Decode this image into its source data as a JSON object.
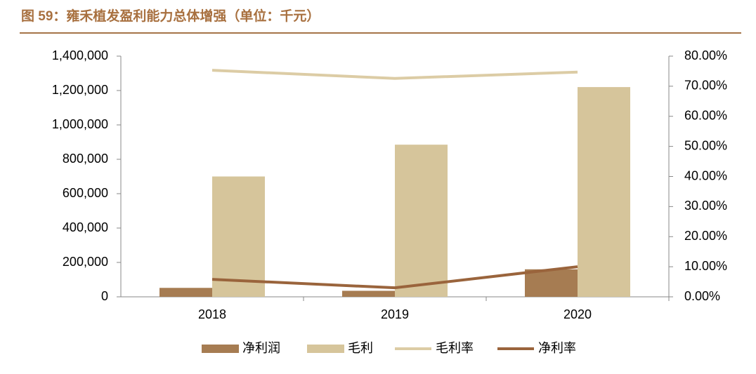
{
  "chart_data": {
    "type": "bar",
    "title": "图 59：雍禾植发盈利能力总体增强（单位：千元）",
    "categories": [
      "2018",
      "2019",
      "2020"
    ],
    "series": [
      {
        "name": "净利润",
        "type": "bar",
        "color": "#a67c52",
        "values": [
          52000,
          35000,
          160000
        ]
      },
      {
        "name": "毛利",
        "type": "bar",
        "color": "#d6c59b",
        "values": [
          700000,
          885000,
          1220000
        ]
      },
      {
        "name": "毛利率",
        "type": "line",
        "axis": "y2",
        "color": "#dccca5",
        "values": [
          75.3,
          72.6,
          74.7
        ]
      },
      {
        "name": "净利率",
        "type": "line",
        "axis": "y2",
        "color": "#9a643c",
        "values": [
          5.8,
          3.0,
          10.0
        ]
      }
    ],
    "ylim": [
      0,
      1400000
    ],
    "yticks": [
      0,
      {
        "value": 200000,
        "label": "200,000"
      },
      {
        "value": 400000,
        "label": "400,000"
      },
      {
        "value": 600000,
        "label": "600,000"
      },
      {
        "value": 800000,
        "label": "800,000"
      },
      {
        "value": 1000000,
        "label": "1,000,000"
      },
      {
        "value": 1200000,
        "label": "1,200,000"
      },
      {
        "value": 1400000,
        "label": "1,400,000"
      }
    ],
    "y2lim": [
      0,
      80
    ],
    "y2ticks": [
      {
        "value": 0,
        "label": "0.00%"
      },
      {
        "value": 10,
        "label": "10.00%"
      },
      {
        "value": 20,
        "label": "20.00%"
      },
      {
        "value": 30,
        "label": "30.00%"
      },
      {
        "value": 40,
        "label": "40.00%"
      },
      {
        "value": 50,
        "label": "50.00%"
      },
      {
        "value": 60,
        "label": "60.00%"
      },
      {
        "value": 70,
        "label": "70.00%"
      },
      {
        "value": 80,
        "label": "80.00%"
      }
    ],
    "legend": "bottom"
  }
}
